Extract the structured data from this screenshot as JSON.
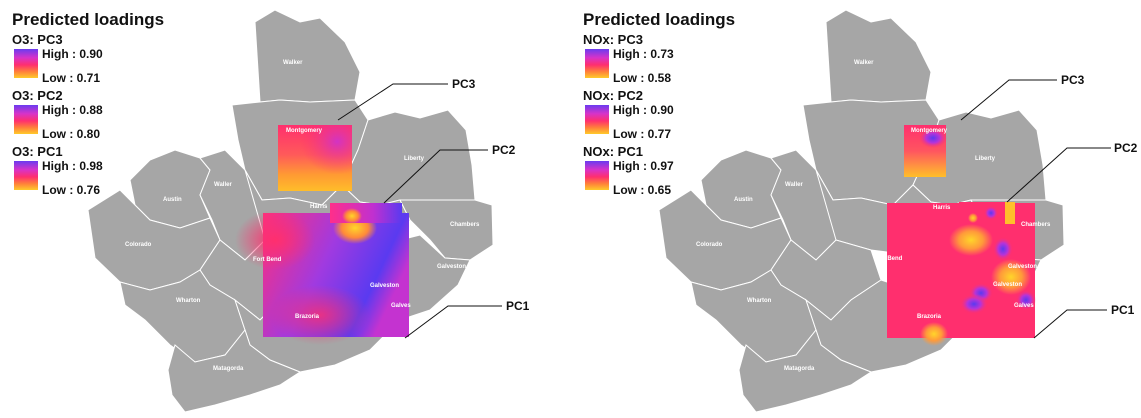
{
  "panels": [
    {
      "title": "Predicted loadings",
      "legend": [
        {
          "title": "O3: PC3",
          "high": "High : 0.90",
          "low": "Low : 0.71"
        },
        {
          "title": "O3: PC2",
          "high": "High : 0.88",
          "low": "Low : 0.80"
        },
        {
          "title": "O3: PC1",
          "high": "High : 0.98",
          "low": "Low : 0.76"
        }
      ],
      "callouts": {
        "pc3": "PC3",
        "pc2": "PC2",
        "pc1": "PC1"
      }
    },
    {
      "title": "Predicted loadings",
      "legend": [
        {
          "title": "NOx: PC3",
          "high": "High : 0.73",
          "low": "Low : 0.58"
        },
        {
          "title": "NOx: PC2",
          "high": "High : 0.90",
          "low": "Low : 0.77"
        },
        {
          "title": "NOx: PC1",
          "high": "High : 0.97",
          "low": "Low : 0.65"
        }
      ],
      "callouts": {
        "pc3": "PC3",
        "pc2": "PC2",
        "pc1": "PC1"
      }
    }
  ],
  "counties": {
    "walker": "Walker",
    "montgomery": "Montgomery",
    "liberty": "Liberty",
    "austin": "Austin",
    "waller": "Waller",
    "harris": "Harris",
    "chambers": "Chambers",
    "colorado": "Colorado",
    "fort_bend": "Fort Bend",
    "galveston": "Galveston",
    "galveston_short": "Galves",
    "wharton": "Wharton",
    "brazoria": "Brazoria",
    "matagorda": "Matagorda"
  },
  "colors": {
    "county_fill": "#a6a6a6",
    "county_border": "#ffffff",
    "gradient_high": "#6a3bf0",
    "gradient_mid": "#ff2f6e",
    "gradient_low": "#ffcb2a"
  }
}
